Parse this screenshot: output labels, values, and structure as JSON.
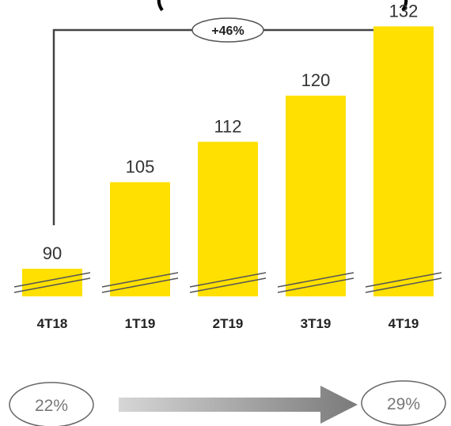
{
  "chart_data": {
    "type": "bar",
    "categories": [
      "4T18",
      "1T19",
      "2T19",
      "3T19",
      "4T19"
    ],
    "values": [
      90,
      105,
      112,
      120,
      132
    ],
    "axis_break": true,
    "growth_annotation": "+46%",
    "from_category": "4T18",
    "to_category": "4T19",
    "bar_color": "#FFE000",
    "grid": false
  },
  "ratio_compare": {
    "start": "22%",
    "end": "29%"
  }
}
